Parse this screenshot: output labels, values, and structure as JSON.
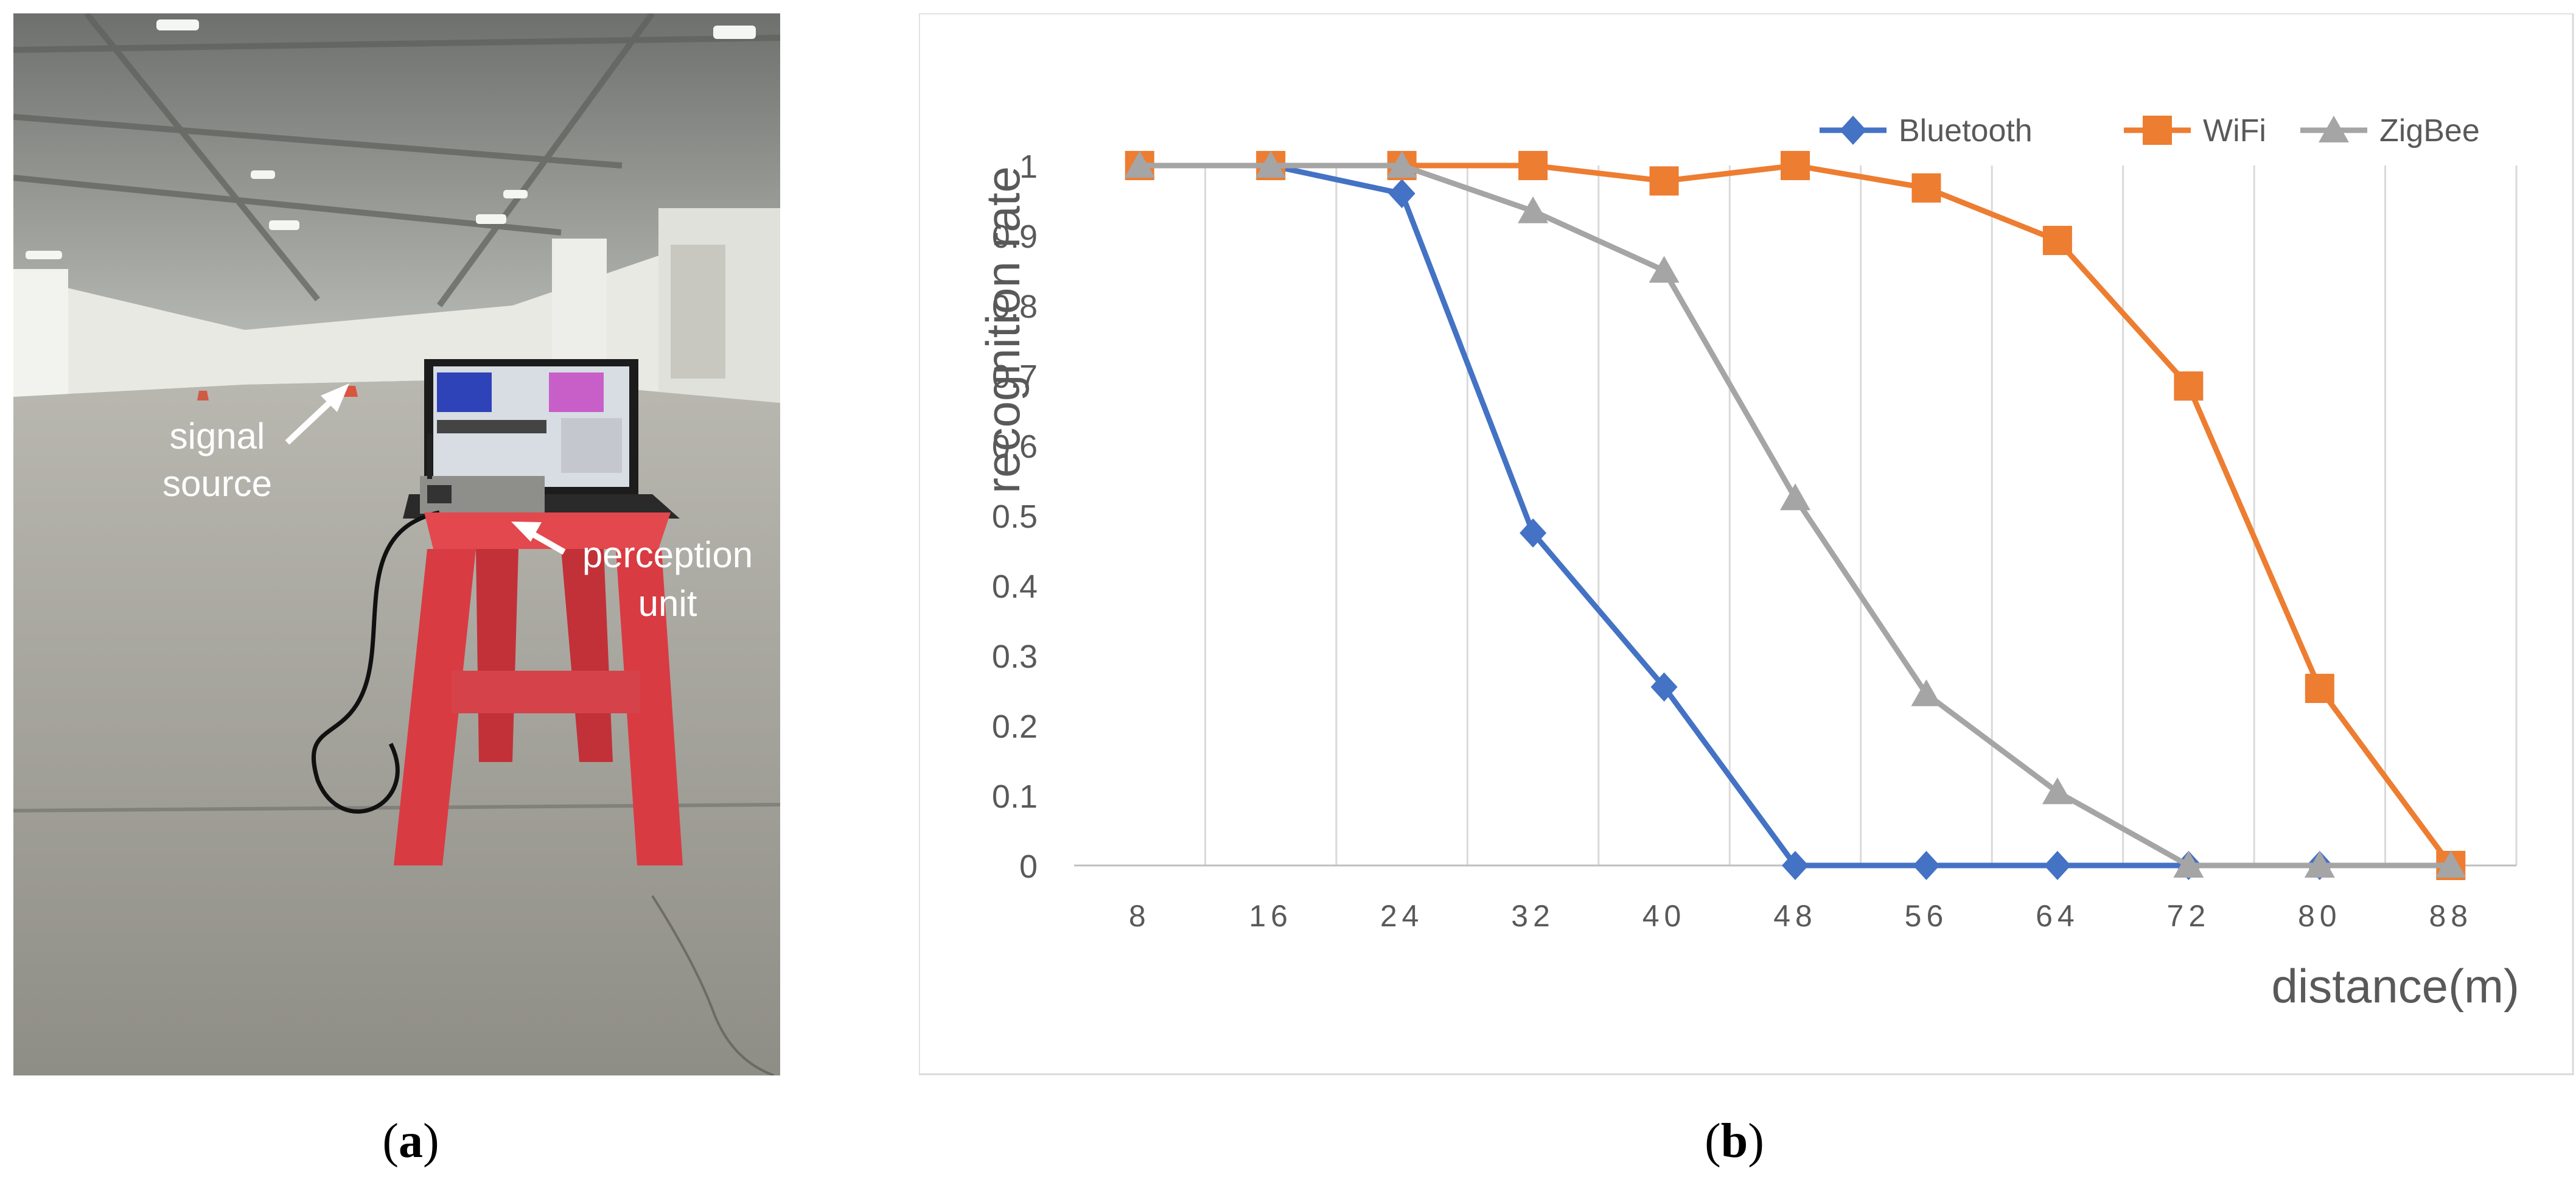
{
  "photo": {
    "label_signal_source_1": "signal",
    "label_signal_source_2": "source",
    "label_perception_unit_1": "perception",
    "label_perception_unit_2": "unit"
  },
  "captions": {
    "a_open": "(",
    "a_letter": "a",
    "a_close": ")",
    "b_open": "(",
    "b_letter": "b",
    "b_close": ")"
  },
  "colors": {
    "bluetooth": "#4472c4",
    "wifi": "#ed7d31",
    "zigbee": "#a5a5a5",
    "grid": "#d9d9d9",
    "axis_text": "#595959"
  },
  "chart_data": {
    "type": "line",
    "title": "",
    "xlabel": "distance(m)",
    "ylabel": "recognition rate",
    "categories": [
      "8",
      "16",
      "24",
      "32",
      "40",
      "48",
      "56",
      "64",
      "72",
      "80",
      "88"
    ],
    "ylim": [
      0,
      1
    ],
    "yticks": [
      "0",
      "0.1",
      "0.2",
      "0.3",
      "0.4",
      "0.5",
      "0.6",
      "0.7",
      "0.8",
      "0.9",
      "1"
    ],
    "legend_position": "top-right",
    "grid": "vertical",
    "series": [
      {
        "name": "Bluetooth",
        "marker": "diamond",
        "values": [
          1,
          1,
          0.96,
          0.475,
          0.255,
          0,
          0,
          0,
          0,
          0,
          0
        ]
      },
      {
        "name": "WiFi",
        "marker": "square",
        "values": [
          1,
          1,
          1,
          1,
          0.978,
          1,
          0.968,
          0.893,
          0.685,
          0.253,
          0
        ]
      },
      {
        "name": "ZigBee",
        "marker": "triangle",
        "values": [
          1,
          1,
          1,
          0.935,
          0.85,
          0.525,
          0.245,
          0.105,
          0,
          0,
          0
        ]
      }
    ]
  }
}
